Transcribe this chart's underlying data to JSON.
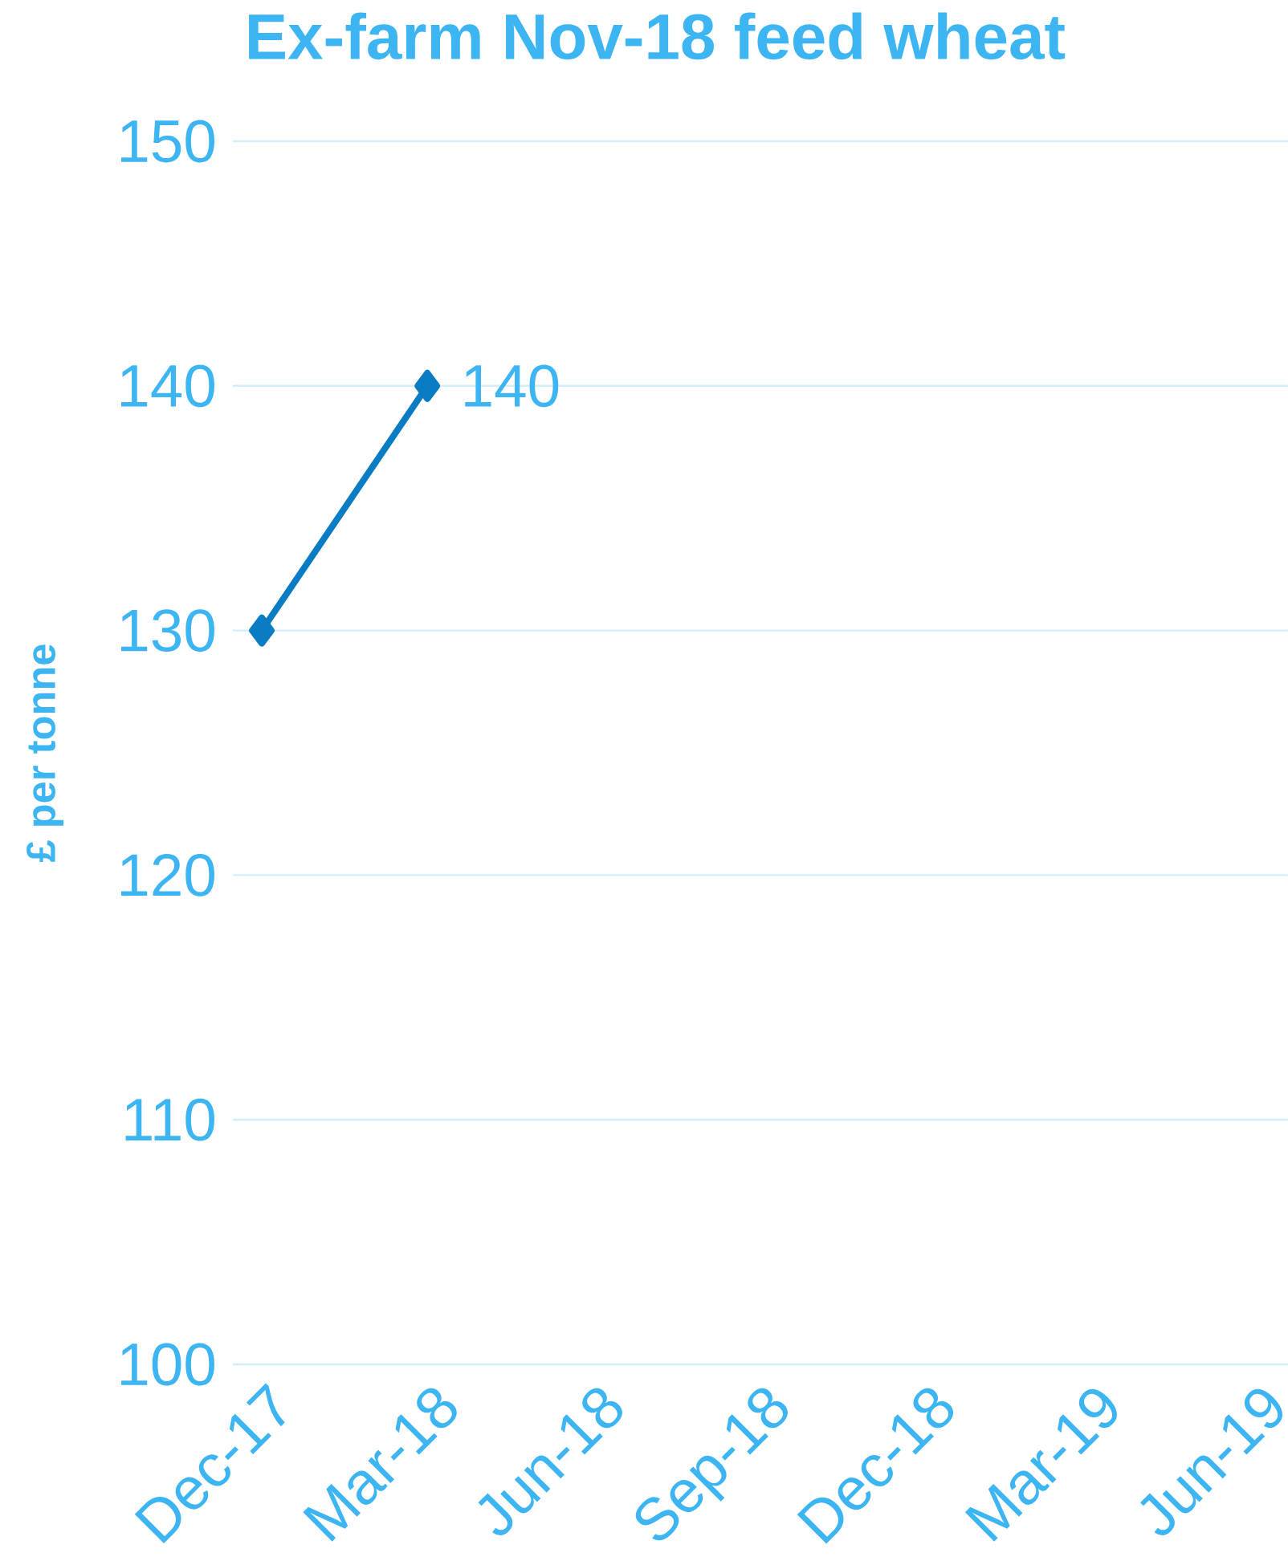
{
  "chart_data": {
    "type": "line",
    "title": "Ex-farm Nov-18 feed wheat",
    "ylabel": "£ per tonne",
    "categories": [
      "Dec-17",
      "Mar-18",
      "Jun-18",
      "Sep-18",
      "Dec-18",
      "Mar-19",
      "Jun-19"
    ],
    "series": [
      {
        "color": "#0a7cc4",
        "values": [
          130,
          140,
          null,
          null,
          null,
          null,
          null
        ],
        "value_labels": [
          null,
          "140",
          null,
          null,
          null,
          null,
          null
        ]
      }
    ],
    "ylim": [
      100,
      150
    ],
    "yticks": [
      100,
      110,
      120,
      130,
      140,
      150
    ],
    "grid": "y",
    "marker": "diamond",
    "line_style": "solid"
  }
}
